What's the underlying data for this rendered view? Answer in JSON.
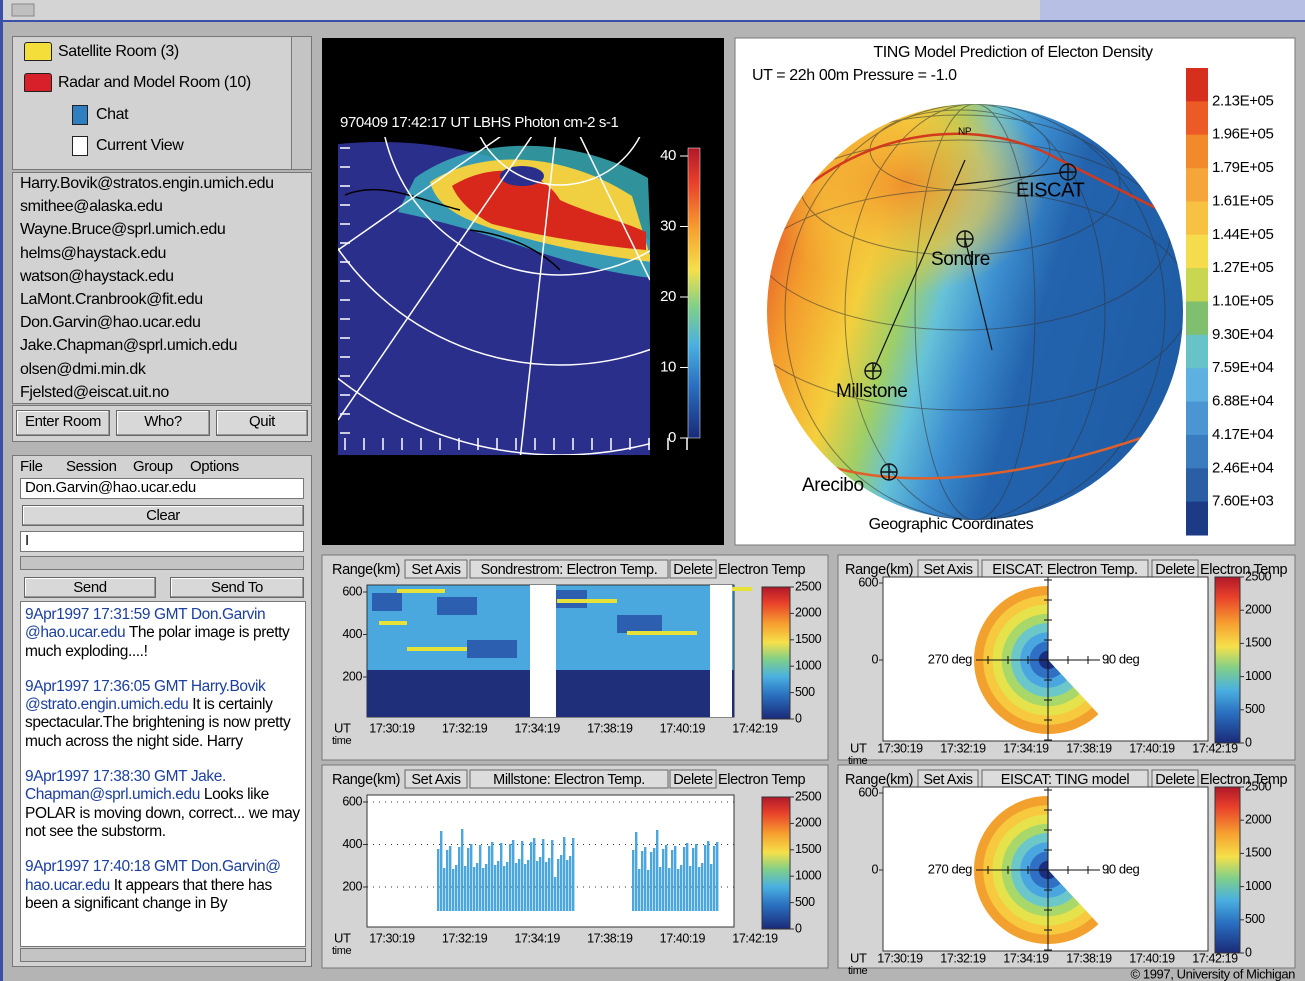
{
  "rooms": [
    "Satellite Room (3)",
    "Radar and Model Room (10)",
    "Chat",
    "Current View"
  ],
  "users": [
    "Harry.Bovik@stratos.engin.umich.edu",
    "smithee@alaska.edu",
    "Wayne.Bruce@sprl.umich.edu",
    "helms@haystack.edu",
    "watson@haystack.edu",
    "LaMont.Cranbrook@fit.edu",
    "Don.Garvin@hao.ucar.edu",
    "Jake.Chapman@sprl.umich.edu",
    "olsen@dmi.min.dk",
    "Fjelsted@eiscat.uit.no"
  ],
  "room_buttons": [
    "Enter Room",
    "Who?",
    "Quit"
  ],
  "chat": {
    "menu": [
      "File",
      "Session",
      "Group",
      "Options"
    ],
    "address": "Don.Garvin@hao.ucar.edu",
    "clear": "Clear",
    "input": "I",
    "buttons": [
      "Send",
      "Send To"
    ],
    "messages": [
      {
        "header": "9Apr1997 17:31:59 GMT Don.Garvin @hao.ucar.edu",
        "body": "The polar image is pretty much exploding....!"
      },
      {
        "header": "9Apr1997 17:36:05 GMT Harry.Bovik @strato.engin.umich.edu",
        "body": "It is certainly spectacular.The brightening is now pretty much across the night side.   Harry"
      },
      {
        "header": "9Apr1997 17:38:30 GMT Jake. Chapman@sprl.umich.edu",
        "body": "Looks like POLAR is moving down, correct... we may not see the substorm."
      },
      {
        "header": "9Apr1997 17:40:18 GMT Don.Garvin@ hao.ucar.edu",
        "body": "It appears that there has been a significant change in By"
      }
    ]
  },
  "polar_image": {
    "title": "970409   17:42:17 UT    LBHS   Photon cm-2  s-1",
    "scale": [
      40,
      30,
      20,
      10,
      0
    ]
  },
  "model": {
    "title": "TING Model Prediction of Electon Density",
    "subtitle": "UT = 22h 00m   Pressure = -1.0",
    "scale": [
      "2.13E+05",
      "1.96E+05",
      "1.79E+05",
      "1.61E+05",
      "1.44E+05",
      "1.27E+05",
      "1.10E+05",
      "9.30E+04",
      "7.59E+04",
      "6.88E+04",
      "4.17E+04",
      "2.46E+04",
      "7.60E+03"
    ],
    "sites": [
      "NP",
      "EISCAT",
      "Sondre",
      "Millstone",
      "Arecibo"
    ],
    "caption": "Geographic Coordinates"
  },
  "plots": [
    {
      "type": "timeseries",
      "range_button": "Range(km)",
      "set_axis": "Set Axis",
      "name": "Sondrestrom: Electron Temp.",
      "delete": "Delete",
      "quantity": "Electron Temp",
      "y_ticks": [
        600,
        400,
        200
      ],
      "color_ticks": [
        2500,
        2000,
        1500,
        1000,
        500,
        0
      ],
      "x_title": [
        "UT",
        "time"
      ],
      "times": [
        "17:30:19",
        "17:32:19",
        "17:34:19",
        "17:38:19",
        "17:40:19",
        "17:42:19"
      ]
    },
    {
      "type": "timeseries",
      "range_button": "Range(km)",
      "set_axis": "Set Axis",
      "name": "Millstone: Electron Temp.",
      "delete": "Delete",
      "quantity": "Electron Temp",
      "y_ticks": [
        600,
        400,
        200
      ],
      "color_ticks": [
        2500,
        2000,
        1500,
        1000,
        500,
        0
      ],
      "x_title": [
        "UT",
        "time"
      ],
      "times": [
        "17:30:19",
        "17:32:19",
        "17:34:19",
        "17:38:19",
        "17:40:19",
        "17:42:19"
      ]
    },
    {
      "type": "polar",
      "range_button": "Range(km)",
      "set_axis": "Set Axis",
      "name": "EISCAT: Electron Temp.",
      "delete": "Delete",
      "quantity": "Electron Temp",
      "y_ticks": [
        600,
        0
      ],
      "angle_labels": [
        "270 deg",
        "90 deg"
      ],
      "color_ticks": [
        2500,
        2000,
        1500,
        1000,
        500,
        0
      ],
      "x_title": [
        "UT",
        "time"
      ],
      "times": [
        "17:30:19",
        "17:32:19",
        "17:34:19",
        "17:38:19",
        "17:40:19",
        "17:42:19"
      ]
    },
    {
      "type": "polar",
      "range_button": "Range(km)",
      "set_axis": "Set Axis",
      "name": "EISCAT: TING model",
      "delete": "Delete",
      "quantity": "Electron Temp",
      "y_ticks": [
        600,
        0
      ],
      "angle_labels": [
        "270 deg",
        "90 deg"
      ],
      "color_ticks": [
        2500,
        2000,
        1500,
        1000,
        500,
        0
      ],
      "x_title": [
        "UT",
        "time"
      ],
      "times": [
        "17:30:19",
        "17:32:19",
        "17:34:19",
        "17:38:19",
        "17:40:19",
        "17:42:19"
      ]
    }
  ],
  "footer": "© 1997, University of Michigan"
}
